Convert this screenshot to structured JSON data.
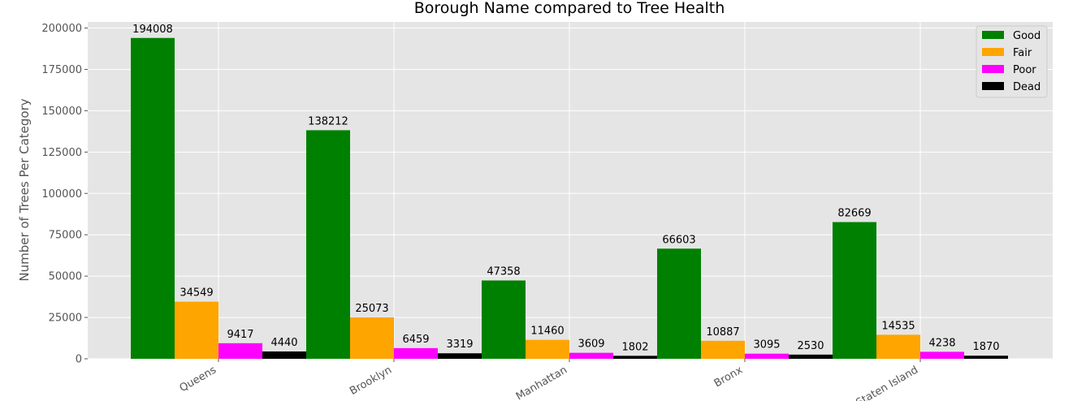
{
  "chart_data": {
    "type": "bar",
    "title": "Borough Name compared to Tree Health",
    "xlabel": "",
    "ylabel": "Number of Trees Per Category",
    "categories": [
      "Queens",
      "Brooklyn",
      "Manhattan",
      "Bronx",
      "Staten Island"
    ],
    "series": [
      {
        "name": "Good",
        "color": "#008000",
        "values": [
          194008,
          138212,
          47358,
          66603,
          82669
        ]
      },
      {
        "name": "Fair",
        "color": "#FFA500",
        "values": [
          34549,
          25073,
          11460,
          10887,
          14535
        ]
      },
      {
        "name": "Poor",
        "color": "#FF00FF",
        "values": [
          9417,
          6459,
          3609,
          3095,
          4238
        ]
      },
      {
        "name": "Dead",
        "color": "#000000",
        "values": [
          4440,
          3319,
          1802,
          2530,
          1870
        ]
      }
    ],
    "ylim": [
      0,
      203708
    ],
    "yticks": [
      0,
      25000,
      50000,
      75000,
      100000,
      125000,
      150000,
      175000,
      200000
    ],
    "grid": true,
    "legend_position": "top-right",
    "background": "#E5E5E5"
  }
}
